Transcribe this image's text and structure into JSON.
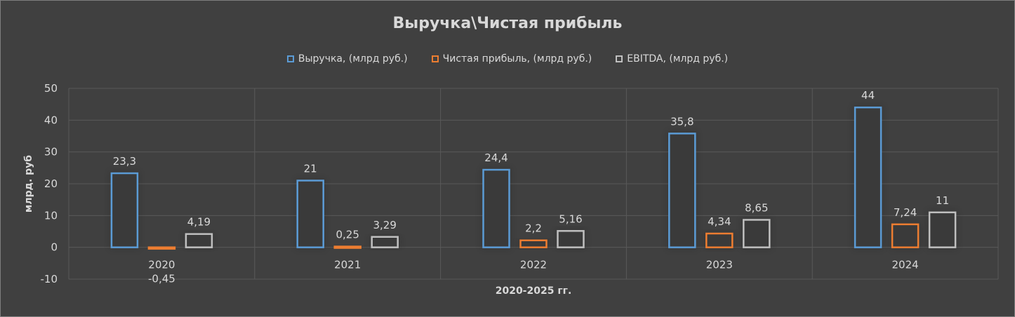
{
  "chart_data": {
    "type": "bar",
    "title": "Выручка\\Чистая прибыль",
    "xlabel": "2020-2025 гг.",
    "ylabel": "млрд. руб",
    "categories": [
      "2020",
      "2021",
      "2022",
      "2023",
      "2024"
    ],
    "ylim": [
      -10,
      50
    ],
    "yticks": [
      "-10",
      "0",
      "10",
      "20",
      "30",
      "40",
      "50"
    ],
    "grid": true,
    "legend_position": "top",
    "series": [
      {
        "name": "Выручка, (млрд руб.)",
        "color": "#5b9bd5",
        "values": [
          23.3,
          21,
          24.4,
          35.8,
          44
        ],
        "labels": [
          "23,3",
          "21",
          "24,4",
          "35,8",
          "44"
        ]
      },
      {
        "name": "Чистая прибыль, (млрд руб.)",
        "color": "#ed7d31",
        "values": [
          -0.45,
          0.25,
          2.2,
          4.34,
          7.24
        ],
        "labels": [
          "-0,45",
          "0,25",
          "2,2",
          "4,34",
          "7,24"
        ]
      },
      {
        "name": "EBITDA, (млрд руб.)",
        "color": "#bfbfbf",
        "values": [
          4.19,
          3.29,
          5.16,
          8.65,
          11
        ],
        "labels": [
          "4,19",
          "3,29",
          "5,16",
          "8,65",
          "11"
        ]
      }
    ]
  }
}
